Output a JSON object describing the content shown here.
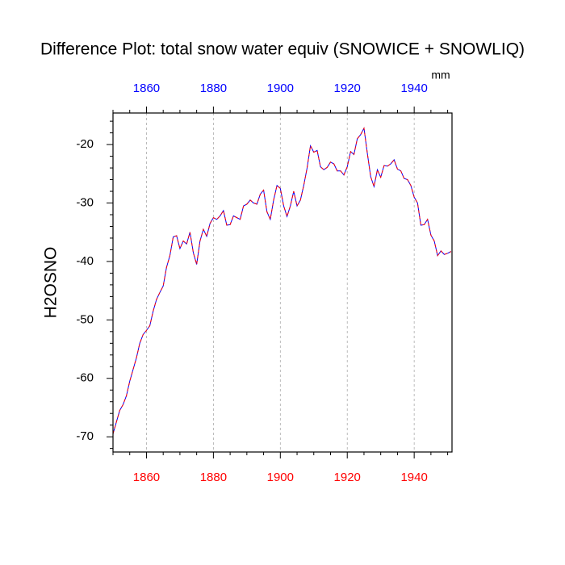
{
  "chart_data": {
    "type": "line",
    "title": "Difference Plot: total snow water equiv (SNOWICE + SNOWLIQ)",
    "ylabel": "H2OSNO",
    "units": "mm",
    "x": [
      1850,
      1851,
      1852,
      1853,
      1854,
      1855,
      1856,
      1857,
      1858,
      1859,
      1860,
      1861,
      1862,
      1863,
      1864,
      1865,
      1866,
      1867,
      1868,
      1869,
      1870,
      1871,
      1872,
      1873,
      1874,
      1875,
      1876,
      1877,
      1878,
      1879,
      1880,
      1881,
      1882,
      1883,
      1884,
      1885,
      1886,
      1887,
      1888,
      1889,
      1890,
      1891,
      1892,
      1893,
      1894,
      1895,
      1896,
      1897,
      1898,
      1899,
      1900,
      1901,
      1902,
      1903,
      1904,
      1905,
      1906,
      1907,
      1908,
      1909,
      1910,
      1911,
      1912,
      1913,
      1914,
      1915,
      1916,
      1917,
      1918,
      1919,
      1920,
      1921,
      1922,
      1923,
      1924,
      1925,
      1926,
      1927,
      1928,
      1929,
      1930,
      1931,
      1932,
      1933,
      1934,
      1935,
      1936,
      1937,
      1938,
      1939,
      1940,
      1941,
      1942,
      1943,
      1944,
      1945,
      1946,
      1947,
      1948,
      1949,
      1950,
      1951
    ],
    "series": [
      {
        "color": "#0000ff",
        "dash": false,
        "values": [
          -69.5,
          -67.5,
          -65.5,
          -64.5,
          -63,
          -60.5,
          -58.5,
          -56.5,
          -54,
          -52.5,
          -51.8,
          -51,
          -48.5,
          -46.5,
          -45.3,
          -44.2,
          -41,
          -39,
          -35.8,
          -35.6,
          -37.8,
          -36.5,
          -37,
          -35,
          -38.5,
          -40.5,
          -36.5,
          -34.5,
          -35.7,
          -33.5,
          -32.5,
          -32.8,
          -32.2,
          -31.3,
          -33.8,
          -33.7,
          -32.2,
          -32.5,
          -32.8,
          -30.5,
          -30.2,
          -29.5,
          -30,
          -30.2,
          -28.5,
          -27.8,
          -31.5,
          -32.8,
          -29.5,
          -27,
          -27.5,
          -30.5,
          -32.3,
          -30.5,
          -28,
          -30.5,
          -29.5,
          -27,
          -24,
          -20.2,
          -21.3,
          -21,
          -23.8,
          -24.3,
          -23.9,
          -23,
          -23.3,
          -24.5,
          -24.5,
          -25.2,
          -23.8,
          -21.2,
          -21.7,
          -19,
          -18.3,
          -17.2,
          -21.5,
          -25.5,
          -27.2,
          -24.3,
          -25.6,
          -23.6,
          -23.7,
          -23.3,
          -22.6,
          -24.2,
          -24.5,
          -25.8,
          -26,
          -27,
          -29,
          -30,
          -33.8,
          -33.7,
          -32.8,
          -35.5,
          -36.5,
          -39,
          -38.2,
          -38.8,
          -38.6,
          -38.3
        ]
      },
      {
        "color": "#ff0000",
        "dash": true,
        "values": [
          -69.5,
          -67.5,
          -65.5,
          -64.5,
          -63,
          -60.5,
          -58.5,
          -56.5,
          -54,
          -52.5,
          -51.8,
          -51,
          -48.5,
          -46.5,
          -45.3,
          -44.2,
          -41,
          -39,
          -35.8,
          -35.6,
          -37.8,
          -36.5,
          -37,
          -35,
          -38.5,
          -40.5,
          -36.5,
          -34.5,
          -35.7,
          -33.5,
          -32.5,
          -32.8,
          -32.2,
          -31.3,
          -33.8,
          -33.7,
          -32.2,
          -32.5,
          -32.8,
          -30.5,
          -30.2,
          -29.5,
          -30,
          -30.2,
          -28.5,
          -27.8,
          -31.5,
          -32.8,
          -29.5,
          -27,
          -27.5,
          -30.5,
          -32.3,
          -30.5,
          -28,
          -30.5,
          -29.5,
          -27,
          -24,
          -20.2,
          -21.3,
          -21,
          -23.8,
          -24.3,
          -23.9,
          -23,
          -23.3,
          -24.5,
          -24.5,
          -25.2,
          -23.8,
          -21.2,
          -21.7,
          -19,
          -18.3,
          -17.2,
          -21.5,
          -25.5,
          -27.2,
          -24.3,
          -25.6,
          -23.6,
          -23.7,
          -23.3,
          -22.6,
          -24.2,
          -24.5,
          -25.8,
          -26,
          -27,
          -29,
          -30,
          -33.8,
          -33.7,
          -32.8,
          -35.5,
          -36.5,
          -39,
          -38.2,
          -38.8,
          -38.6,
          -38.3
        ]
      }
    ],
    "xlim": [
      1850,
      1951.3
    ],
    "ylim": [
      -72.6,
      -14.6
    ],
    "xticks": [
      1860,
      1880,
      1900,
      1920,
      1940
    ],
    "xminorticks": [
      1850,
      1855,
      1865,
      1870,
      1875,
      1885,
      1890,
      1895,
      1905,
      1910,
      1915,
      1925,
      1930,
      1935,
      1945,
      1950
    ],
    "yticks": [
      -70,
      -60,
      -50,
      -40,
      -30,
      -20
    ],
    "yminorticks": [
      -72,
      -68,
      -66,
      -64,
      -62,
      -58,
      -56,
      -54,
      -52,
      -48,
      -46,
      -44,
      -42,
      -38,
      -36,
      -34,
      -32,
      -28,
      -26,
      -24,
      -22,
      -18,
      -16
    ],
    "x_tick_color": "#ff0000",
    "x2_tick_color": "#0000ff",
    "xgrid": true
  }
}
